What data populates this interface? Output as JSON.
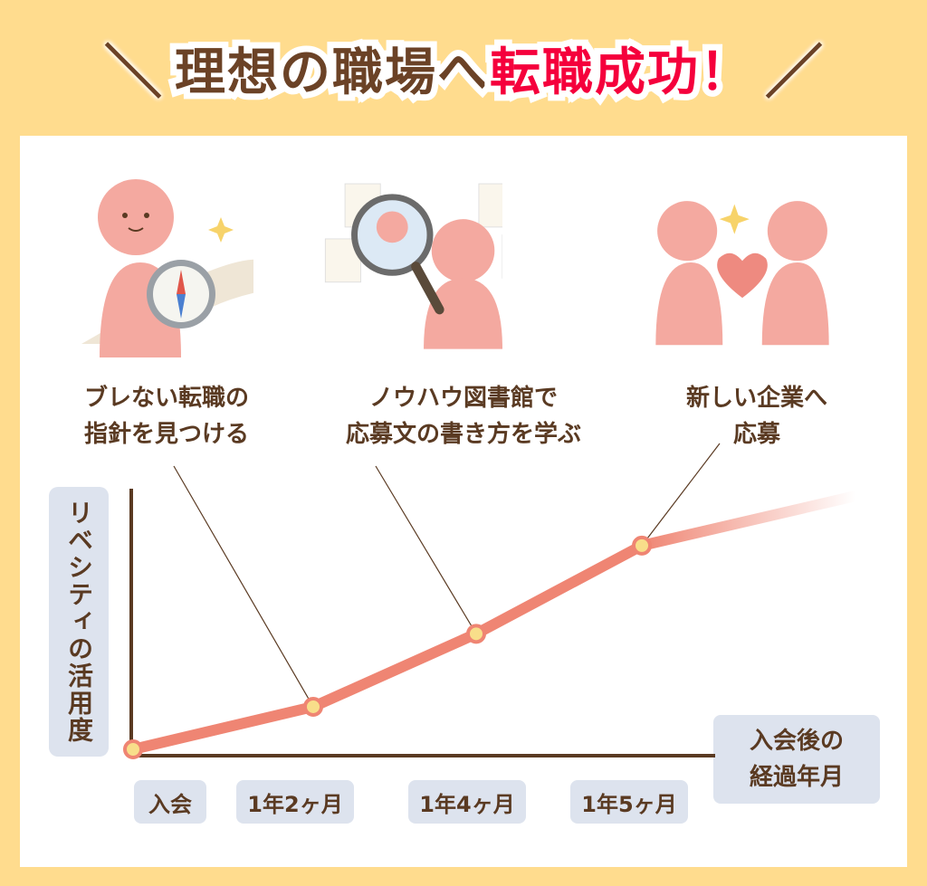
{
  "title": {
    "part1": "理想の職場へ",
    "part2": "転職成功！",
    "slash_left": "＼",
    "slash_right": "／"
  },
  "steps": [
    {
      "line1": "ブレない転職の",
      "line2": "指針を見つける",
      "icon": "person-with-compass"
    },
    {
      "line1": "ノウハウ図書館で",
      "line2": "応募文の書き方を学ぶ",
      "icon": "person-with-magnifier"
    },
    {
      "line1": "新しい企業へ",
      "line2": "応募",
      "icon": "people-holding-heart"
    }
  ],
  "colors": {
    "background": "#FFDC8E",
    "line": "#EF8573",
    "point_fill": "#F8DE8A",
    "label_bg": "#DDE3EE",
    "title_red": "#F5003C",
    "text": "#5a3a22"
  },
  "chart_data": {
    "type": "line",
    "title": "",
    "ylabel": "リベシティの活用度",
    "xlabel": "入会後の経過年月",
    "categories": [
      "入会",
      "1年2ヶ月",
      "1年4ヶ月",
      "1年5ヶ月"
    ],
    "values": [
      0,
      14,
      38,
      67
    ],
    "ylim": [
      0,
      100
    ],
    "y_ticks": false,
    "grid": false,
    "trend_continues_beyond_last_point": true
  }
}
